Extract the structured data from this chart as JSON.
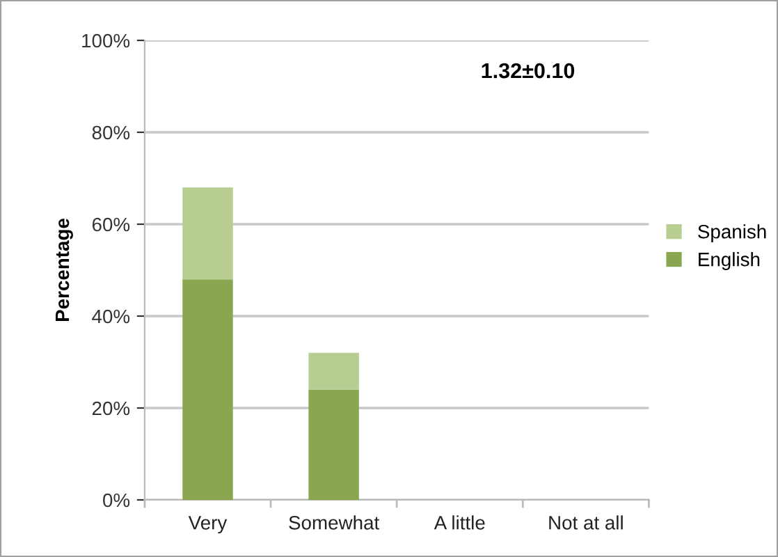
{
  "chart_data": {
    "type": "bar",
    "stacked": true,
    "ylabel": "Percentage",
    "categories": [
      "Very",
      "Somewhat",
      "A little",
      "Not at all"
    ],
    "series": [
      {
        "name": "English",
        "color": "#8aa650",
        "values": [
          48,
          24,
          0,
          0
        ]
      },
      {
        "name": "Spanish",
        "color": "#b7cd92",
        "values": [
          20,
          8,
          0,
          0
        ]
      }
    ],
    "ylim": [
      0,
      100
    ],
    "yticks": [
      {
        "value": 0,
        "label": "0%"
      },
      {
        "value": 20,
        "label": "20%"
      },
      {
        "value": 40,
        "label": "40%"
      },
      {
        "value": 60,
        "label": "60%"
      },
      {
        "value": 80,
        "label": "80%"
      },
      {
        "value": 100,
        "label": "100%"
      }
    ],
    "grid": "y",
    "legend": "right",
    "annotations": [
      "1.32±0.10"
    ]
  }
}
